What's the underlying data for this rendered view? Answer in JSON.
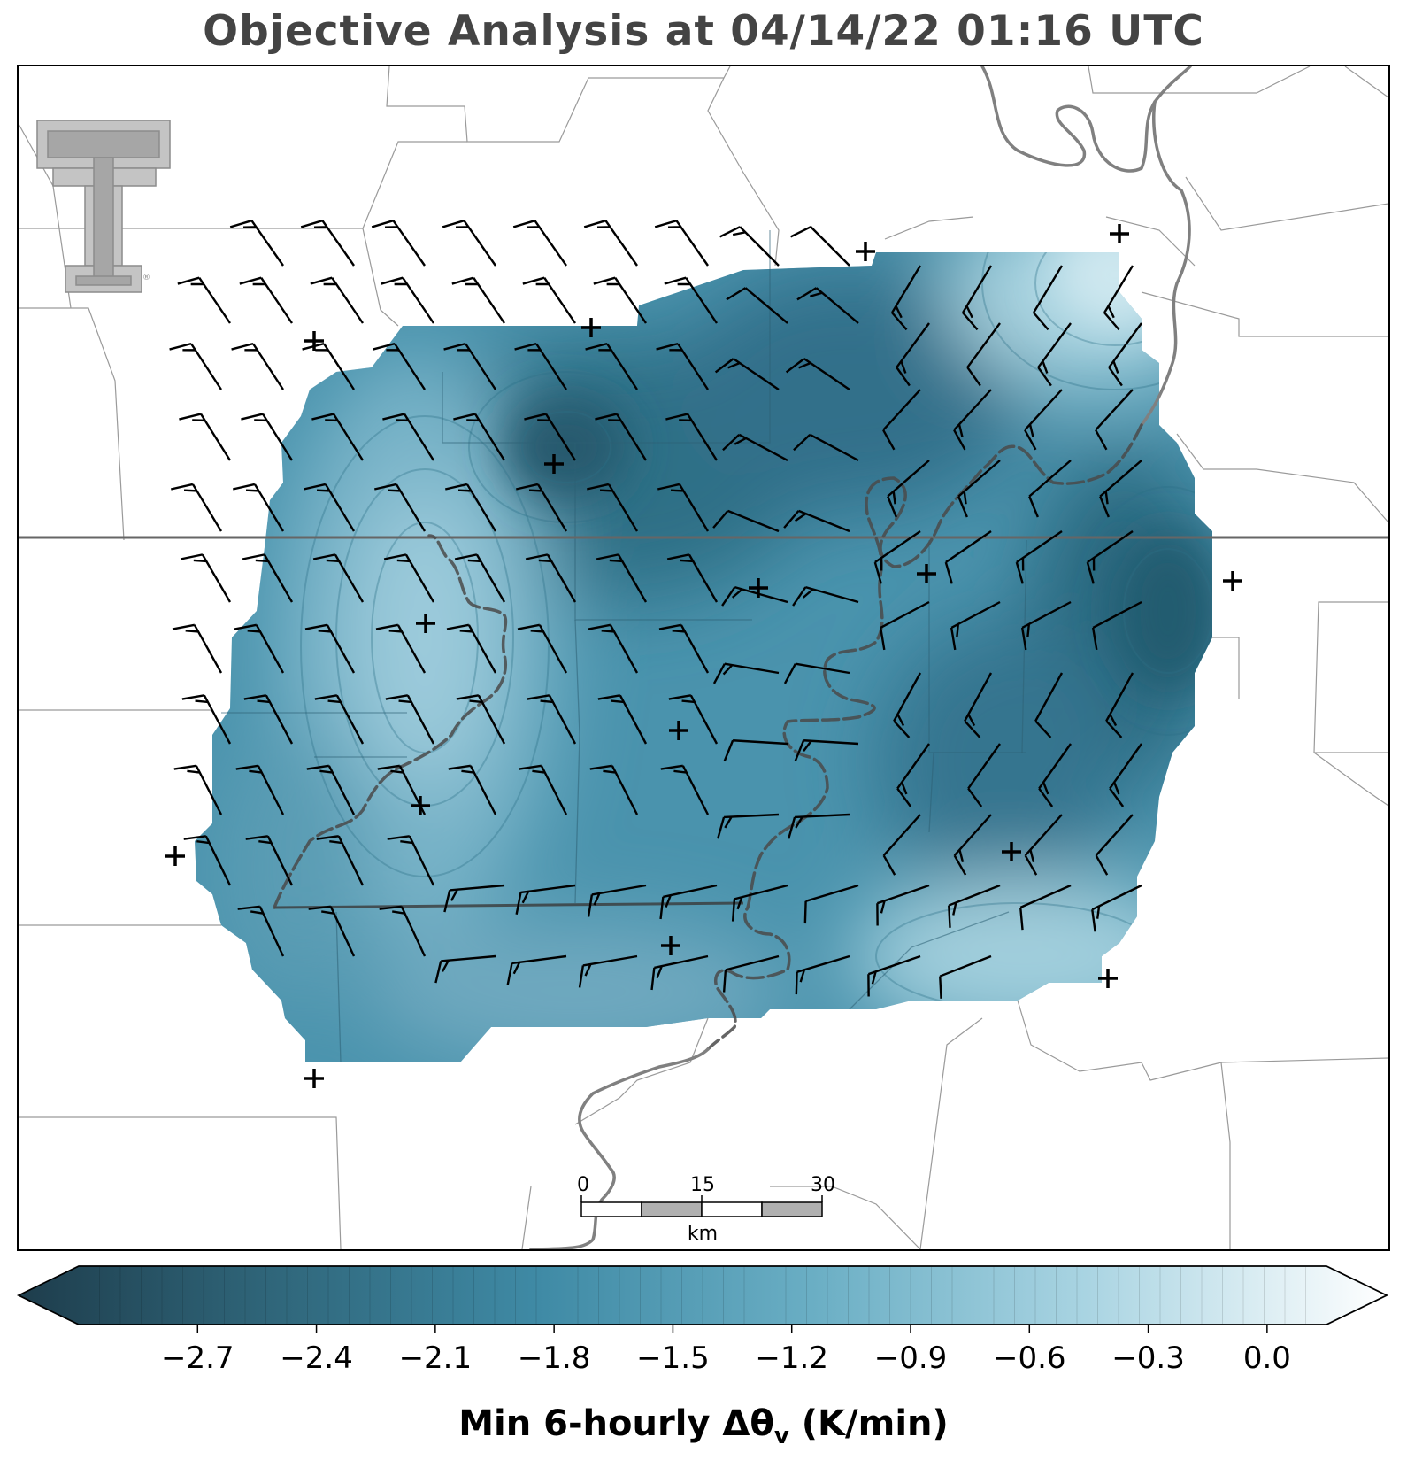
{
  "title": "Objective Analysis at 04/14/22 01:16 UTC",
  "colorbar": {
    "label_main": "Min 6-hourly Δθ",
    "label_sub": "v",
    "label_units": " (K/min)",
    "vmin": -3.0,
    "vmax": 0.15,
    "ticks": [
      "−2.7",
      "−2.4",
      "−2.1",
      "−1.8",
      "−1.5",
      "−1.2",
      "−0.9",
      "−0.6",
      "−0.3",
      "0.0"
    ],
    "tick_values": [
      -2.7,
      -2.4,
      -2.1,
      -1.8,
      -1.5,
      -1.2,
      -0.9,
      -0.6,
      -0.3,
      0.0
    ],
    "colormap": [
      "#1e3d4c",
      "#2f6579",
      "#3f8aa5",
      "#6aaec4",
      "#a9d4e2",
      "#ffffff"
    ],
    "extend": "both"
  },
  "scale_bar": {
    "labels": [
      "0",
      "15",
      "30"
    ],
    "unit": "km"
  },
  "logo": {
    "icon": "double-t-logo-icon",
    "color": "#a6a6a6"
  },
  "station_marker": "plus-icon",
  "field_colors": {
    "dark": "#2f6f86",
    "mid": "#4a93ad",
    "light": "#a8d3e0"
  }
}
